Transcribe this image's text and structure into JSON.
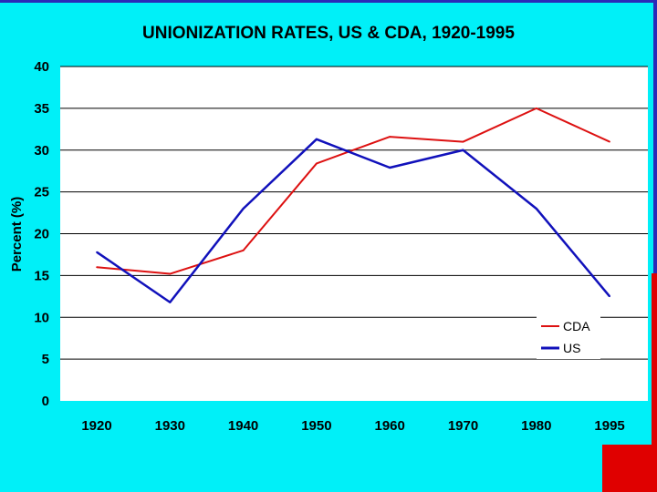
{
  "chart_data": {
    "type": "line",
    "title": "UNIONIZATION RATES, US & CDA, 1920-1995",
    "xlabel": "",
    "ylabel": "Percent (%)",
    "categories": [
      "1920",
      "1930",
      "1940",
      "1950",
      "1960",
      "1970",
      "1980",
      "1995"
    ],
    "ylim": [
      0,
      40
    ],
    "yticks": [
      0,
      5,
      10,
      15,
      20,
      25,
      30,
      35,
      40
    ],
    "grid": true,
    "legend_position": "right",
    "series": [
      {
        "name": "CDA",
        "color": "#dd1111",
        "values": [
          16,
          15.2,
          18,
          28.4,
          31.6,
          31,
          35,
          31
        ]
      },
      {
        "name": "US",
        "color": "#1111bb",
        "values": [
          17.8,
          11.8,
          23,
          31.3,
          27.9,
          30,
          23,
          12.5
        ]
      }
    ]
  }
}
